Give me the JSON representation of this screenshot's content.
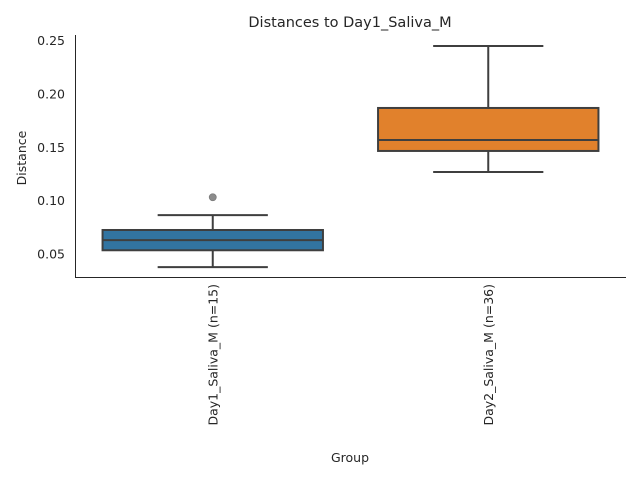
{
  "chart_data": {
    "type": "box",
    "title": "Distances to Day1_Saliva_M",
    "xlabel": "Group",
    "ylabel": "Distance",
    "ylim": [
      0.0275,
      0.2553
    ],
    "yticks": [
      "0.05",
      "0.10",
      "0.15",
      "0.20",
      "0.25"
    ],
    "ytick_values": [
      0.05,
      0.1,
      0.15,
      0.2,
      0.25
    ],
    "grid": false,
    "categories": [
      "Day1_Saliva_M (n=15)",
      "Day2_Saliva_M (n=36)"
    ],
    "boxes": [
      {
        "whislo": 0.0377,
        "q1": 0.0535,
        "median": 0.063,
        "q3": 0.0725,
        "whishi": 0.0865,
        "fliers": [
          0.1032
        ],
        "color": "#3274a1"
      },
      {
        "whislo": 0.1269,
        "q1": 0.1466,
        "median": 0.1569,
        "q3": 0.1869,
        "whishi": 0.245,
        "fliers": [],
        "color": "#e1812c"
      }
    ]
  }
}
